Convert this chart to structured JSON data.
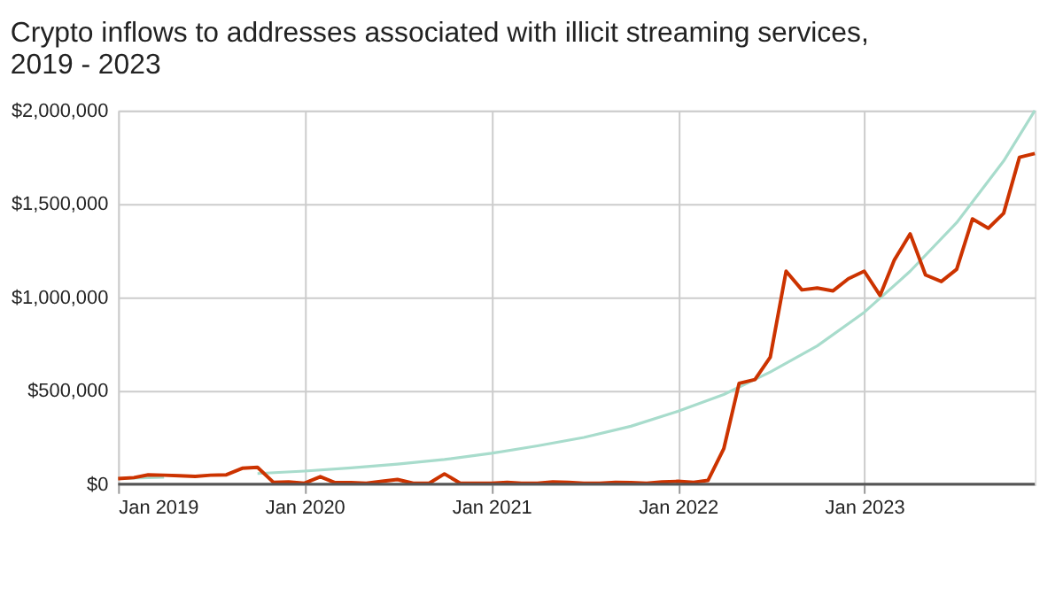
{
  "chart_data": {
    "type": "line",
    "title": "Crypto inflows to addresses associated with illicit streaming services, 2019 - 2023",
    "x": [
      "2019-01",
      "2019-02",
      "2019-03",
      "2019-04",
      "2019-05",
      "2019-06",
      "2019-07",
      "2019-08",
      "2019-09",
      "2019-10",
      "2019-11",
      "2019-12",
      "2020-01",
      "2020-02",
      "2020-03",
      "2020-04",
      "2020-05",
      "2020-06",
      "2020-07",
      "2020-08",
      "2020-09",
      "2020-10",
      "2020-11",
      "2020-12",
      "2021-01",
      "2021-02",
      "2021-03",
      "2021-04",
      "2021-05",
      "2021-06",
      "2021-07",
      "2021-08",
      "2021-09",
      "2021-10",
      "2021-11",
      "2021-12",
      "2022-01",
      "2022-02",
      "2022-03",
      "2022-04",
      "2022-05",
      "2022-06",
      "2022-07",
      "2022-08",
      "2022-09",
      "2022-10",
      "2022-11",
      "2022-12",
      "2023-01",
      "2023-02",
      "2023-03",
      "2023-04",
      "2023-05",
      "2023-06",
      "2023-07",
      "2023-08",
      "2023-09",
      "2023-10",
      "2023-11",
      "2023-12"
    ],
    "series": [
      {
        "color": "#a8dccc",
        "x": [
          "2019-01",
          "2019-04",
          "2019-07",
          "2019-10",
          "2020-01",
          "2020-04",
          "2020-07",
          "2020-10",
          "2021-01",
          "2021-04",
          "2021-07",
          "2021-10",
          "2022-01",
          "2022-04",
          "2022-07",
          "2022-10",
          "2023-01",
          "2023-04",
          "2023-07",
          "2023-10",
          "2023-12"
        ],
        "values": [
          30000,
          37000,
          null,
          57000,
          70000,
          87000,
          107000,
          132000,
          165000,
          205000,
          250000,
          310000,
          390000,
          480000,
          600000,
          740000,
          920000,
          1140000,
          1400000,
          1730000,
          2000000
        ]
      },
      {
        "color": "#cc3300",
        "values": [
          30000,
          35000,
          50000,
          48000,
          45000,
          42000,
          48000,
          50000,
          85000,
          90000,
          10000,
          12000,
          5000,
          40000,
          8000,
          8000,
          5000,
          15000,
          25000,
          5000,
          5000,
          55000,
          5000,
          5000,
          5000,
          10000,
          5000,
          5000,
          12000,
          10000,
          5000,
          5000,
          10000,
          8000,
          5000,
          12000,
          15000,
          10000,
          20000,
          190000,
          540000,
          560000,
          680000,
          1140000,
          1040000,
          1050000,
          1035000,
          1100000,
          1140000,
          1010000,
          1200000,
          1340000,
          1120000,
          1085000,
          1150000,
          1420000,
          1370000,
          1450000,
          1750000,
          1770000
        ]
      }
    ],
    "xlim": [
      "2019-01",
      "2023-12"
    ],
    "xticks": [
      {
        "value": "2019-01",
        "label": "Jan 2019"
      },
      {
        "value": "2020-01",
        "label": "Jan 2020"
      },
      {
        "value": "2021-01",
        "label": "Jan 2021"
      },
      {
        "value": "2022-01",
        "label": "Jan 2022"
      },
      {
        "value": "2023-01",
        "label": "Jan 2023"
      }
    ],
    "ylim": [
      0,
      2000000
    ],
    "yticks": [
      {
        "value": 0,
        "label": "$0"
      },
      {
        "value": 500000,
        "label": "$500,000"
      },
      {
        "value": 1000000,
        "label": "$1,000,000"
      },
      {
        "value": 1500000,
        "label": "$1,500,000"
      },
      {
        "value": 2000000,
        "label": "$2,000,000"
      }
    ],
    "grid": true,
    "marker": "none",
    "line_style": "solid"
  }
}
